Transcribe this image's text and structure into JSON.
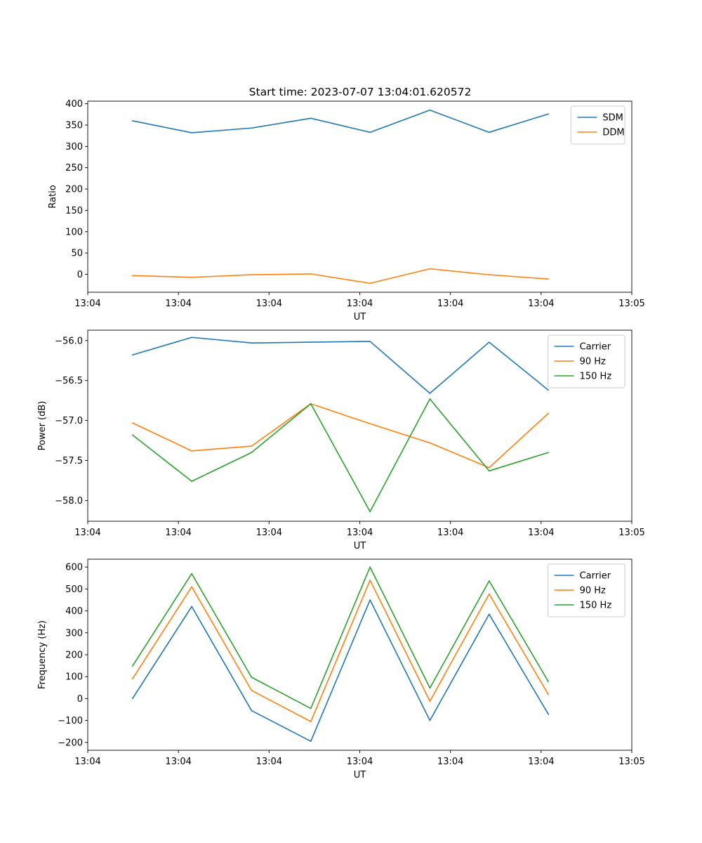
{
  "figure_title": "Start time: 2023-07-07 13:04:01.620572",
  "colors": {
    "blue": "#1f77b4",
    "orange": "#ff7f0e",
    "green": "#2ca02c"
  },
  "chart_data": [
    {
      "type": "line",
      "title": "Start time: 2023-07-07 13:04:01.620572",
      "xlabel": "UT",
      "ylabel": "Ratio",
      "xlim": [
        0,
        9
      ],
      "ylim": [
        -42,
        406
      ],
      "yticks": [
        0,
        50,
        100,
        150,
        200,
        250,
        300,
        350,
        400
      ],
      "ytick_labels": [
        "0",
        "50",
        "100",
        "150",
        "200",
        "250",
        "300",
        "350",
        "400"
      ],
      "xticks": [
        0,
        1.5,
        3,
        4.5,
        6,
        7.5,
        9
      ],
      "xtick_labels": [
        "13:04",
        "13:04",
        "13:04",
        "13:04",
        "13:04",
        "13:04",
        "13:05"
      ],
      "x": [
        0.74,
        1.72,
        2.71,
        3.69,
        4.67,
        5.66,
        6.64,
        7.62
      ],
      "legend": "top-right",
      "series": [
        {
          "name": "SDM",
          "color": "#1f77b4",
          "values": [
            360,
            332,
            343,
            366,
            333,
            385,
            333,
            376
          ]
        },
        {
          "name": "DDM",
          "color": "#ff7f0e",
          "values": [
            -3,
            -7,
            -1,
            1,
            -21,
            13,
            -1,
            -11
          ]
        }
      ]
    },
    {
      "type": "line",
      "title": "",
      "xlabel": "UT",
      "ylabel": "Power (dB)",
      "xlim": [
        0,
        9
      ],
      "ylim": [
        -58.26,
        -55.87
      ],
      "yticks": [
        -58.0,
        -57.5,
        -57.0,
        -56.5,
        -56.0
      ],
      "ytick_labels": [
        "−58.0",
        "−57.5",
        "−57.0",
        "−56.5",
        "−56.0"
      ],
      "xticks": [
        0,
        1.5,
        3,
        4.5,
        6,
        7.5,
        9
      ],
      "xtick_labels": [
        "13:04",
        "13:04",
        "13:04",
        "13:04",
        "13:04",
        "13:04",
        "13:05"
      ],
      "x": [
        0.74,
        1.72,
        2.71,
        3.69,
        4.67,
        5.66,
        6.64,
        7.62
      ],
      "legend": "top-right",
      "series": [
        {
          "name": "Carrier",
          "color": "#1f77b4",
          "values": [
            -56.18,
            -55.96,
            -56.03,
            -56.02,
            -56.01,
            -56.66,
            -56.02,
            -56.62
          ]
        },
        {
          "name": "90 Hz",
          "color": "#ff7f0e",
          "values": [
            -57.03,
            -57.38,
            -57.32,
            -56.79,
            -57.04,
            -57.28,
            -57.59,
            -56.91
          ]
        },
        {
          "name": "150 Hz",
          "color": "#2ca02c",
          "values": [
            -57.18,
            -57.76,
            -57.4,
            -56.79,
            -58.14,
            -56.73,
            -57.63,
            -57.4
          ]
        }
      ]
    },
    {
      "type": "line",
      "title": "",
      "xlabel": "UT",
      "ylabel": "Frequency (Hz)",
      "xlim": [
        0,
        9
      ],
      "ylim": [
        -236,
        636
      ],
      "yticks": [
        -200,
        -100,
        0,
        100,
        200,
        300,
        400,
        500,
        600
      ],
      "ytick_labels": [
        "−200",
        "−100",
        "0",
        "100",
        "200",
        "300",
        "400",
        "500",
        "600"
      ],
      "xticks": [
        0,
        1.5,
        3,
        4.5,
        6,
        7.5,
        9
      ],
      "xtick_labels": [
        "13:04",
        "13:04",
        "13:04",
        "13:04",
        "13:04",
        "13:04",
        "13:05"
      ],
      "x": [
        0.74,
        1.72,
        2.71,
        3.69,
        4.67,
        5.66,
        6.64,
        7.62
      ],
      "legend": "top-right",
      "series": [
        {
          "name": "Carrier",
          "color": "#1f77b4",
          "values": [
            0,
            420,
            -55,
            -195,
            450,
            -100,
            385,
            -72
          ]
        },
        {
          "name": "90 Hz",
          "color": "#ff7f0e",
          "values": [
            90,
            510,
            37,
            -105,
            540,
            -12,
            477,
            18
          ]
        },
        {
          "name": "150 Hz",
          "color": "#2ca02c",
          "values": [
            148,
            570,
            97,
            -45,
            600,
            48,
            537,
            77
          ]
        }
      ]
    }
  ]
}
